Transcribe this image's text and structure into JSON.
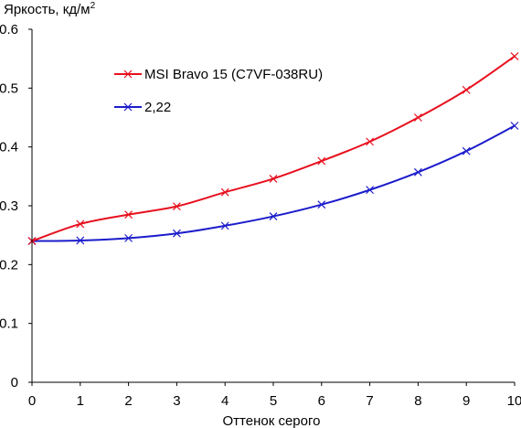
{
  "chart_data": {
    "type": "line",
    "ylabel": "Яркость, кд/м",
    "ylabel_superscript": "2",
    "xlabel": "Оттенок серого",
    "x": [
      0,
      1,
      2,
      3,
      4,
      5,
      6,
      7,
      8,
      9,
      10
    ],
    "xlim": [
      0,
      10
    ],
    "ylim": [
      0,
      0.6
    ],
    "xticks": [
      "0",
      "1",
      "2",
      "3",
      "4",
      "5",
      "6",
      "7",
      "8",
      "9",
      "10"
    ],
    "yticks": [
      "0",
      "0.1",
      "0.2",
      "0.3",
      "0.4",
      "0.5",
      "0.6"
    ],
    "grid": false,
    "legend_position": "upper-left-inside",
    "series": [
      {
        "name": "MSI Bravo 15 (C7VF-038RU)",
        "color": "#e8101e",
        "marker": "x",
        "values": [
          0.24,
          0.269,
          0.285,
          0.299,
          0.323,
          0.346,
          0.376,
          0.409,
          0.45,
          0.497,
          0.554
        ]
      },
      {
        "name": "2,22",
        "color": "#1c1ccc",
        "marker": "x",
        "values": [
          0.24,
          0.241,
          0.245,
          0.253,
          0.266,
          0.282,
          0.302,
          0.327,
          0.357,
          0.393,
          0.436
        ]
      }
    ]
  }
}
